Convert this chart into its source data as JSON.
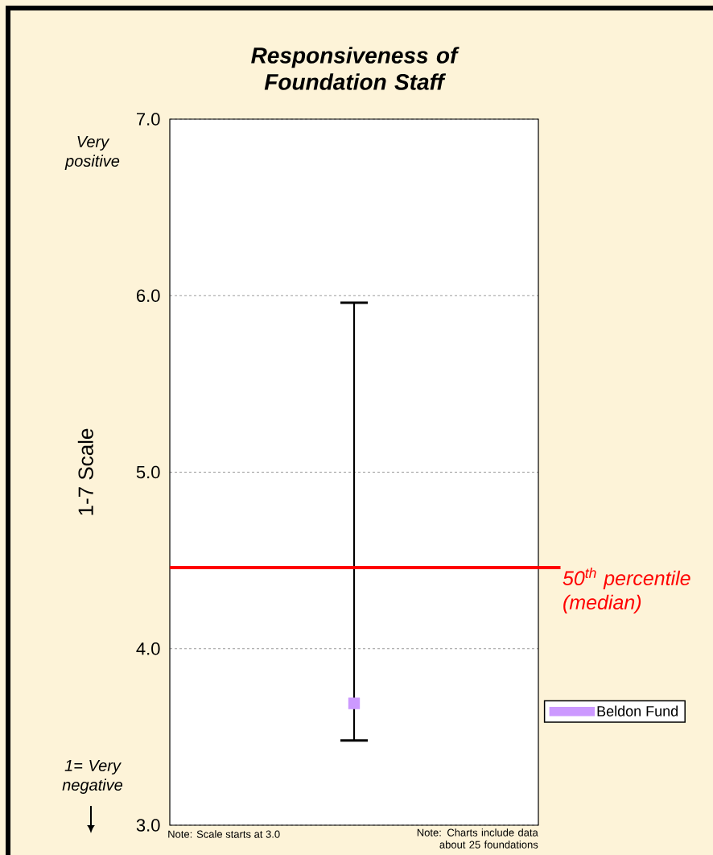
{
  "chart_data": {
    "type": "scatter",
    "title": "Responsiveness of Foundation Staff",
    "ylabel": "1-7 Scale",
    "categories": [
      null
    ],
    "series": [
      {
        "name": "Beldon Fund",
        "color": "#cc99ff",
        "values": [
          3.69
        ],
        "marker": "square",
        "errors": [
          [
            3.48,
            5.96
          ]
        ]
      }
    ],
    "ylim": [
      3,
      7
    ],
    "yticks": [
      {
        "value": 3,
        "label": "3.0"
      },
      {
        "value": 4,
        "label": "4.0"
      },
      {
        "value": 5,
        "label": "5.0"
      },
      {
        "value": 6,
        "label": "6.0"
      },
      {
        "value": 7,
        "label": "7.0"
      }
    ],
    "grid": "y",
    "legend": "right",
    "ref_lines": [
      {
        "axis": "y",
        "value": 4.46,
        "label": "50$^{th}$ percentile (median)",
        "color": "#ff0000"
      }
    ],
    "annotations": [
      "Very positive",
      "1= Very negative",
      "Note: Scale starts at 3.0",
      "Note: Charts include data about 25 foundations"
    ]
  }
}
